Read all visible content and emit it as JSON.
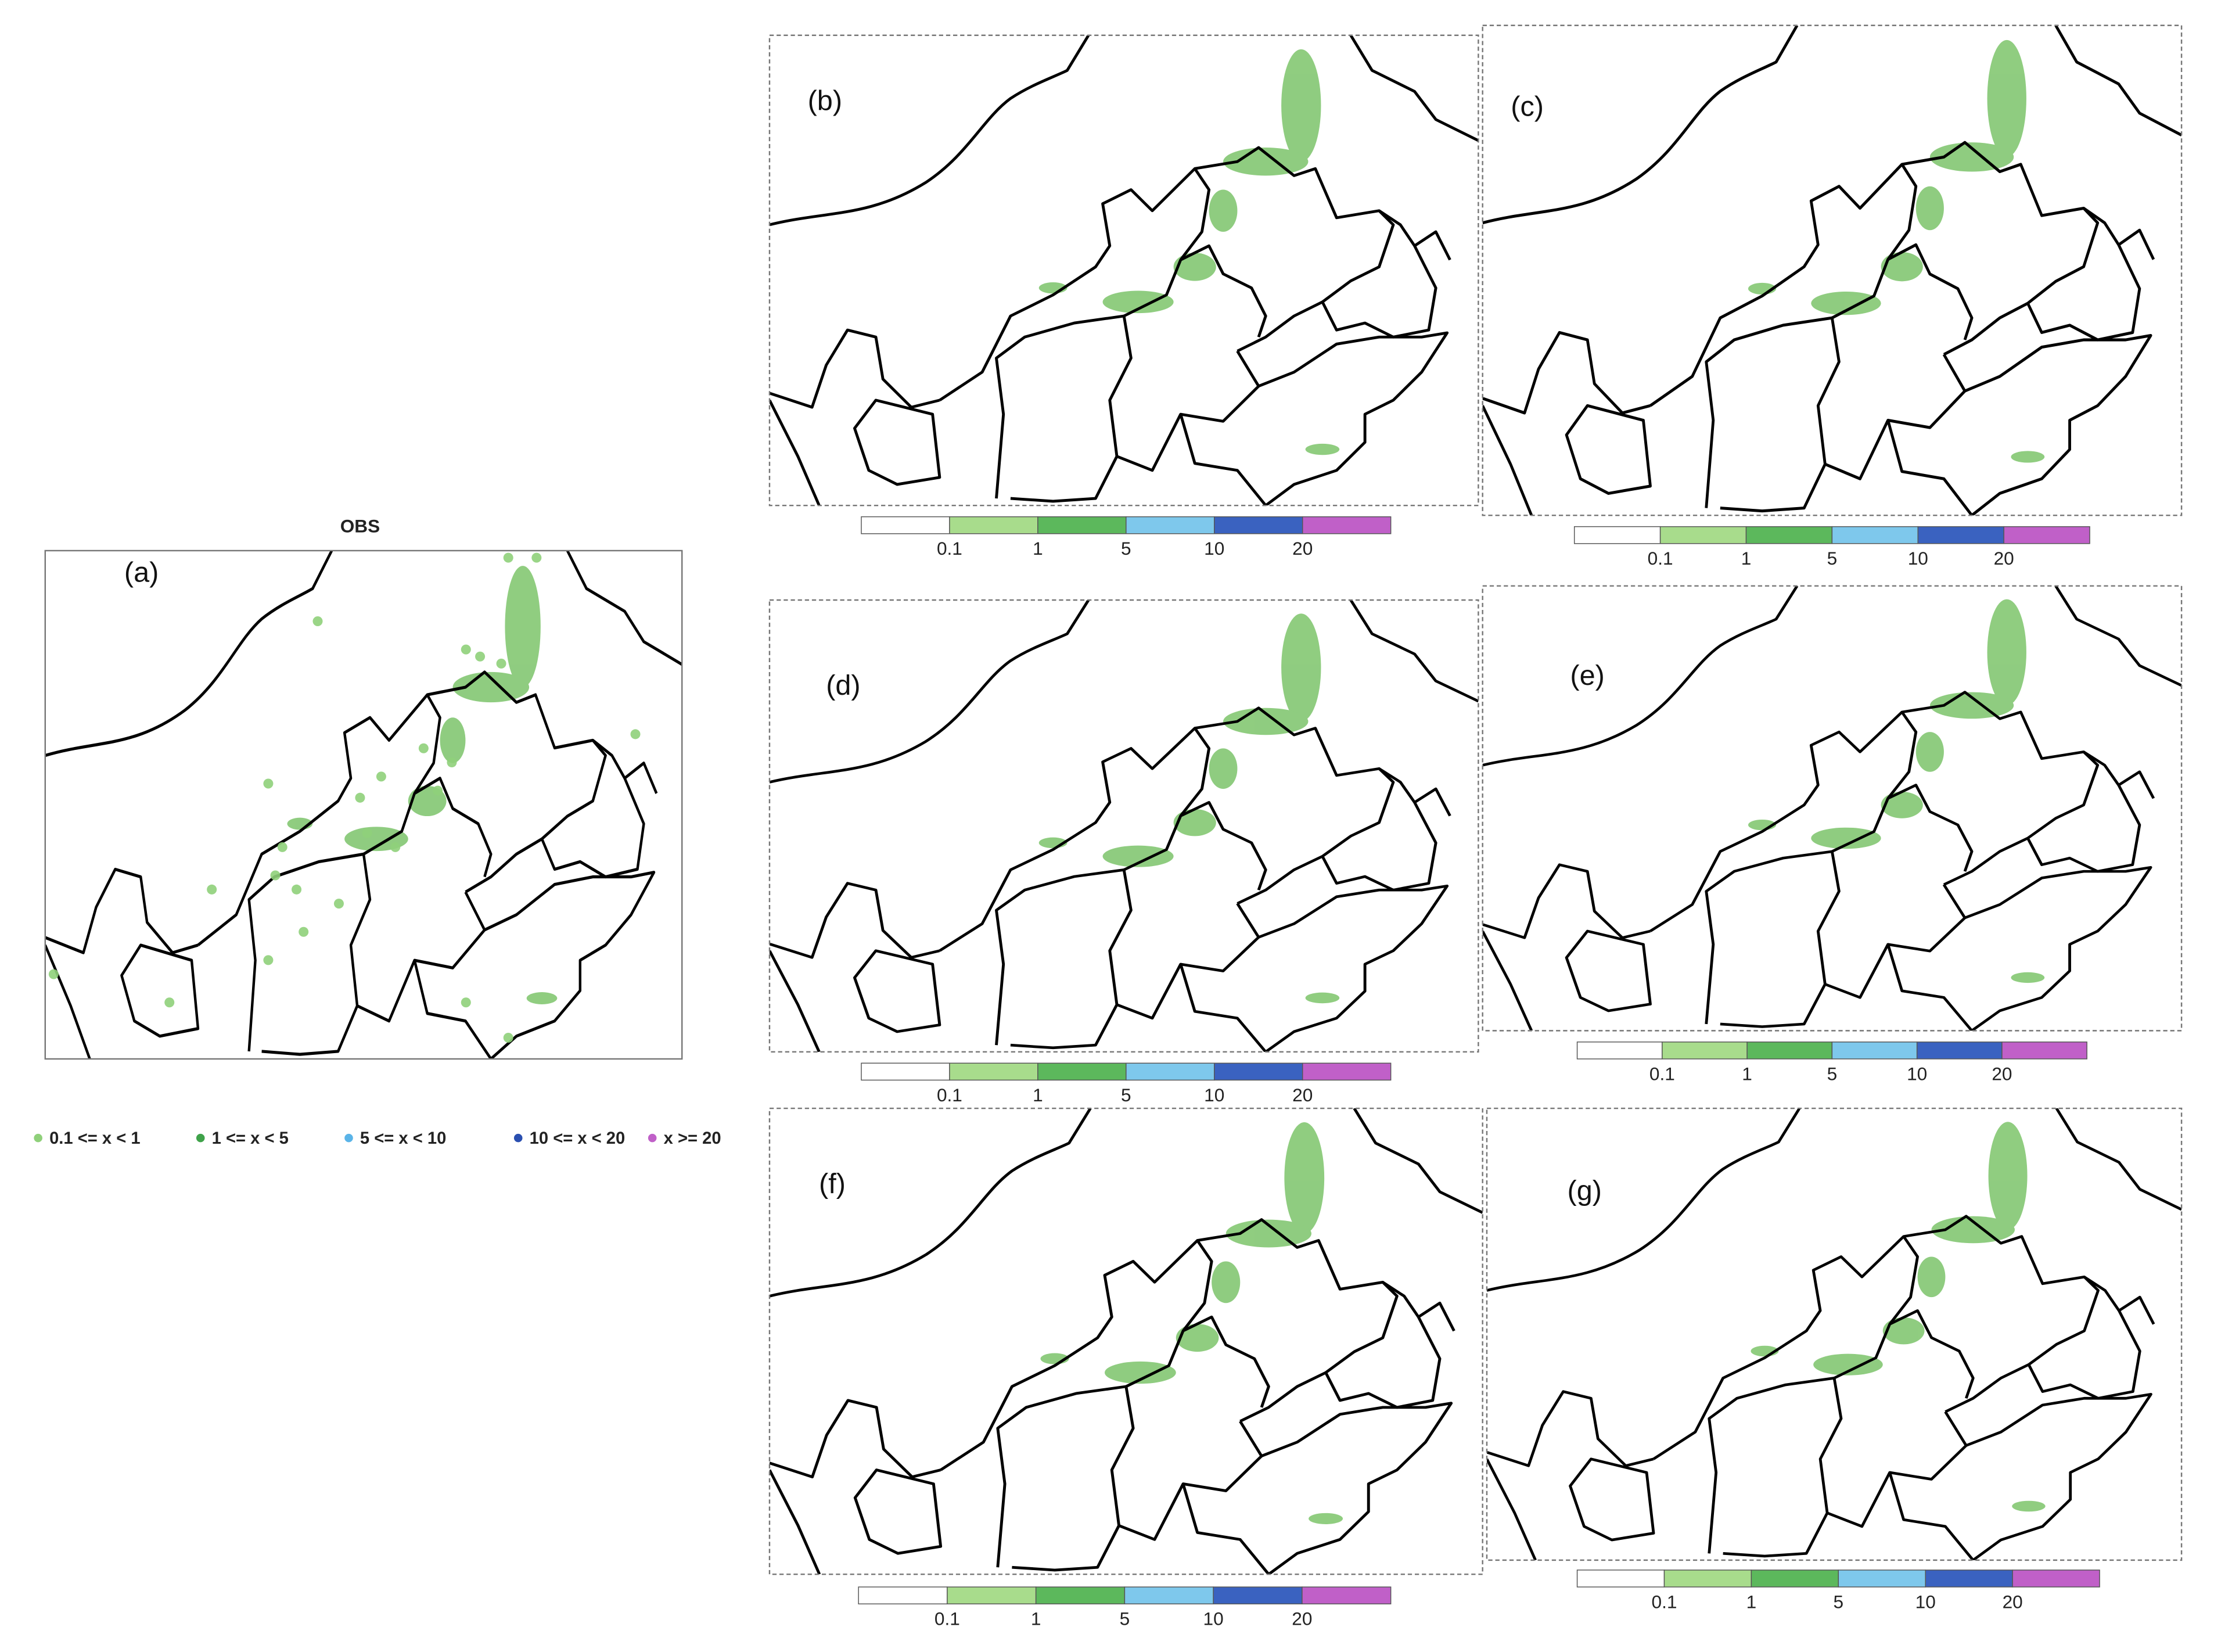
{
  "panels": [
    {
      "label": "(a)",
      "title": "OBS"
    },
    {
      "label": "(b)"
    },
    {
      "label": "(c)"
    },
    {
      "label": "(d)"
    },
    {
      "label": "(e)"
    },
    {
      "label": "(f)"
    },
    {
      "label": "(g)"
    }
  ],
  "colorbar": {
    "ticks": [
      0.1,
      1,
      5,
      10,
      20
    ],
    "colors": [
      "#ffffff",
      "#a8dc8c",
      "#5cb85c",
      "#7ec8ec",
      "#3a62c0",
      "#c060c8"
    ]
  },
  "legend": [
    {
      "label": "0.1 <= x < 1",
      "color": "#8fd07a"
    },
    {
      "label": "1 <= x < 5",
      "color": "#3fa24a"
    },
    {
      "label": "5 <= x < 10",
      "color": "#5ab4e8"
    },
    {
      "label": "10 <= x < 20",
      "color": "#2a4fb0"
    },
    {
      "label": "x >= 20",
      "color": "#c060c8"
    }
  ]
}
